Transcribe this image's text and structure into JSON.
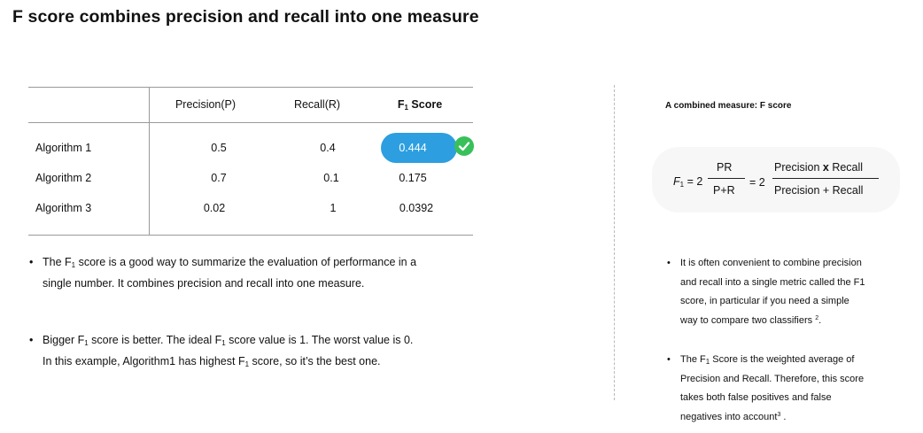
{
  "title": "F score combines precision and recall into one measure",
  "table": {
    "headers": [
      "Precision(P)",
      "Recall(R)",
      "F",
      "1",
      " Score"
    ],
    "rows": [
      {
        "name": "Algorithm 1",
        "p": "0.5",
        "r": "0.4",
        "f": "0.444"
      },
      {
        "name": "Algorithm 2",
        "p": "0.7",
        "r": "0.1",
        "f": "0.175"
      },
      {
        "name": "Algorithm 3",
        "p": "0.02",
        "r": "1",
        "f": "0.0392"
      }
    ],
    "highlight_color": "#2d9fe0",
    "check_color": "#38c05a"
  },
  "left_bullets": {
    "b1_line1_a": "The F",
    "b1_line1_sub": "1",
    "b1_line1_b": " score is a good way to summarize the evaluation of performance in a",
    "b1_line2": "single number. It combines precision and recall into one measure.",
    "b2_line1_a": "Bigger F",
    "b2_line1_sub1": "1",
    "b2_line1_b": " score is better. The ideal F",
    "b2_line1_sub2": "1",
    "b2_line1_c": " score value is 1. The worst value is 0.",
    "b2_line2_a": "In this example, Algorithm1 has highest F",
    "b2_line2_sub": "1",
    "b2_line2_b": " score, so it’s the best one."
  },
  "right": {
    "heading": "A combined measure: F score",
    "formula": {
      "f": "F",
      "f_sub": "1",
      "eq1": " = 2",
      "num1": "PR",
      "den1": "P+R",
      "eq2": "= 2",
      "num2a": "Precision ",
      "times": "x",
      "num2b": " Recall",
      "den2": "Precision + Recall"
    },
    "bullet1": [
      "It is often convenient to combine precision",
      "and recall into a single metric called the F1",
      "score, in particular if you need a simple",
      "way to compare two classifiers "
    ],
    "bullet1_sup": "2",
    "bullet1_end": ".",
    "bullet2_l1_a": "The F",
    "bullet2_l1_sub": "1",
    "bullet2_l1_b": " Score is the weighted average of",
    "bullet2": [
      "Precision and Recall. Therefore, this score",
      "takes both false positives and false",
      "negatives into account"
    ],
    "bullet2_sup": "3",
    "bullet2_end": " ."
  },
  "bullet_char": "•"
}
